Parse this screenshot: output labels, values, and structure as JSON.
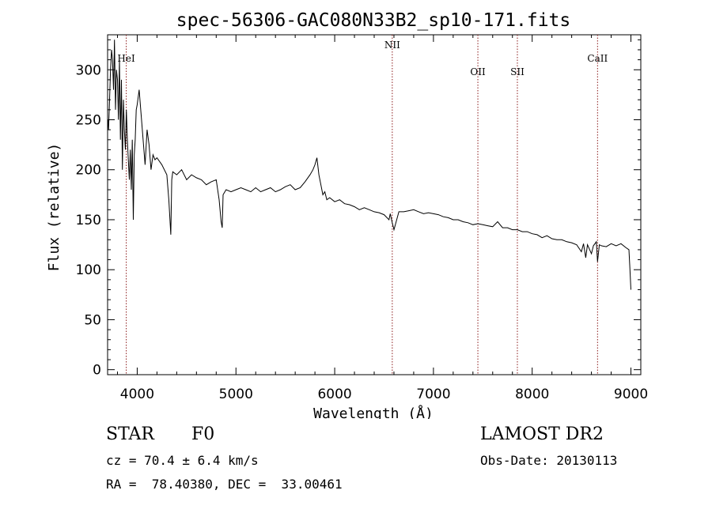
{
  "chart_data": {
    "type": "line",
    "title": "spec-56306-GAC080N33B2_sp10-171.fits",
    "xlabel": "Wavelength (Å)",
    "ylabel": "Flux (relative)",
    "xlim": [
      3700,
      9100
    ],
    "ylim": [
      -5,
      335
    ],
    "xticks": [
      4000,
      5000,
      6000,
      7000,
      8000,
      9000
    ],
    "yticks": [
      0,
      50,
      100,
      150,
      200,
      250,
      300
    ],
    "grid": false,
    "line_color": "#000000",
    "marker_color": "#8b1a1a",
    "lines": [
      {
        "label": "HeI",
        "x": 3889
      },
      {
        "label": "NII",
        "x": 6583
      },
      {
        "label": "OII",
        "x": 7450
      },
      {
        "label": "SII",
        "x": 7850
      },
      {
        "label": "CaII",
        "x": 8662
      }
    ],
    "series": [
      {
        "x": [
          3705,
          3710,
          3720,
          3730,
          3740,
          3750,
          3760,
          3770,
          3780,
          3790,
          3800,
          3810,
          3820,
          3830,
          3840,
          3850,
          3860,
          3870,
          3880,
          3890,
          3900,
          3910,
          3920,
          3930,
          3940,
          3950,
          3960,
          3970,
          3980,
          3990,
          4000,
          4020,
          4040,
          4060,
          4080,
          4100,
          4120,
          4140,
          4160,
          4180,
          4200,
          4250,
          4300,
          4320,
          4340,
          4350,
          4360,
          4400,
          4450,
          4500,
          4550,
          4600,
          4650,
          4700,
          4750,
          4800,
          4830,
          4850,
          4861,
          4870,
          4900,
          4950,
          5000,
          5050,
          5100,
          5150,
          5200,
          5250,
          5300,
          5350,
          5400,
          5450,
          5500,
          5550,
          5600,
          5650,
          5700,
          5750,
          5780,
          5800,
          5820,
          5840,
          5860,
          5880,
          5900,
          5920,
          5950,
          6000,
          6050,
          6100,
          6150,
          6200,
          6250,
          6300,
          6350,
          6400,
          6450,
          6500,
          6550,
          6563,
          6580,
          6600,
          6650,
          6700,
          6750,
          6800,
          6850,
          6900,
          6950,
          7000,
          7050,
          7100,
          7150,
          7200,
          7250,
          7300,
          7350,
          7400,
          7450,
          7500,
          7550,
          7600,
          7650,
          7700,
          7750,
          7800,
          7850,
          7900,
          7950,
          8000,
          8050,
          8100,
          8150,
          8200,
          8250,
          8300,
          8350,
          8400,
          8450,
          8498,
          8520,
          8542,
          8560,
          8600,
          8620,
          8650,
          8662,
          8680,
          8700,
          8750,
          8800,
          8850,
          8900,
          8950,
          8980,
          8990,
          9000
        ],
        "y": [
          250,
          240,
          270,
          300,
          320,
          310,
          280,
          330,
          260,
          300,
          290,
          250,
          310,
          230,
          290,
          200,
          270,
          240,
          220,
          260,
          230,
          210,
          190,
          220,
          180,
          230,
          150,
          215,
          230,
          260,
          265,
          280,
          255,
          230,
          205,
          240,
          225,
          200,
          215,
          210,
          212,
          205,
          195,
          170,
          135,
          190,
          198,
          195,
          200,
          190,
          195,
          192,
          190,
          185,
          188,
          190,
          170,
          148,
          142,
          175,
          180,
          178,
          180,
          182,
          180,
          178,
          182,
          178,
          180,
          182,
          178,
          180,
          183,
          185,
          180,
          182,
          188,
          195,
          200,
          205,
          212,
          195,
          185,
          175,
          178,
          170,
          172,
          168,
          170,
          166,
          165,
          163,
          160,
          162,
          160,
          158,
          157,
          155,
          150,
          156,
          148,
          140,
          158,
          158,
          159,
          160,
          158,
          156,
          157,
          156,
          155,
          153,
          152,
          150,
          150,
          148,
          147,
          145,
          146,
          145,
          144,
          143,
          148,
          142,
          142,
          140,
          140,
          138,
          138,
          136,
          135,
          132,
          134,
          131,
          130,
          130,
          128,
          127,
          125,
          118,
          126,
          112,
          125,
          116,
          124,
          128,
          108,
          125,
          124,
          123,
          126,
          124,
          126,
          122,
          120,
          100,
          80
        ]
      }
    ]
  },
  "info": {
    "object_type": "STAR",
    "subclass": "F0",
    "release": "LAMOST DR2",
    "cz_line": "cz = 70.4 ± 6.4 km/s",
    "obs_date_line": "Obs-Date: 20130113",
    "coord_line": "RA =  78.40380, DEC =  33.00461"
  }
}
